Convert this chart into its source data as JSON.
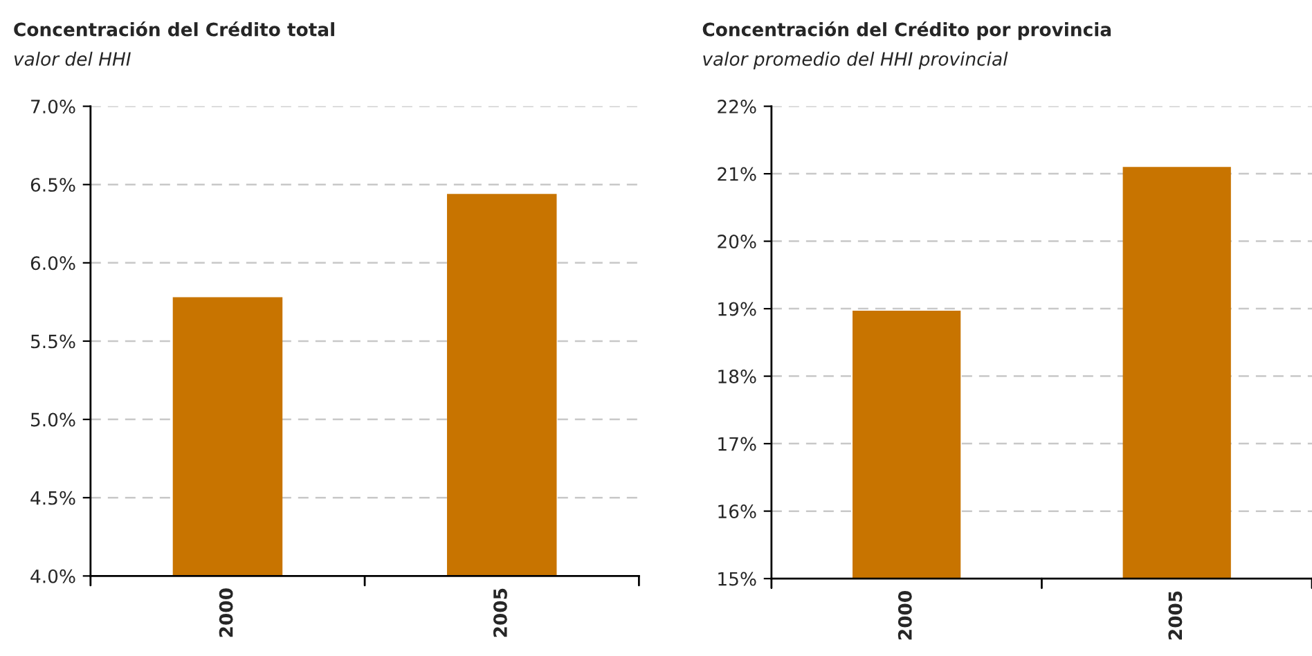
{
  "chart_data": [
    {
      "type": "bar",
      "title": "Concentración del Crédito total",
      "subtitle": "valor del HHI",
      "categories": [
        "2000",
        "2005"
      ],
      "series": [
        {
          "color": "#c87400",
          "values": [
            5.78,
            6.44
          ]
        }
      ],
      "ylim": [
        4.0,
        7.0
      ],
      "yticks": [
        {
          "value": 4.0,
          "label": "4.0%"
        },
        {
          "value": 4.5,
          "label": "4.5%"
        },
        {
          "value": 5.0,
          "label": "5.0%"
        },
        {
          "value": 5.5,
          "label": "5.5%"
        },
        {
          "value": 6.0,
          "label": "6.0%"
        },
        {
          "value": 6.5,
          "label": "6.5%"
        },
        {
          "value": 7.0,
          "label": "7.0%"
        }
      ],
      "grid": "y"
    },
    {
      "type": "bar",
      "title": "Concentración del Crédito por provincia",
      "subtitle": "valor promedio del HHI provincial",
      "categories": [
        "2000",
        "2005"
      ],
      "series": [
        {
          "color": "#c87400",
          "values": [
            18.97,
            21.1
          ]
        }
      ],
      "ylim": [
        15,
        22
      ],
      "yticks": [
        {
          "value": 15,
          "label": "15%"
        },
        {
          "value": 16,
          "label": "16%"
        },
        {
          "value": 17,
          "label": "17%"
        },
        {
          "value": 18,
          "label": "18%"
        },
        {
          "value": 19,
          "label": "19%"
        },
        {
          "value": 20,
          "label": "20%"
        },
        {
          "value": 21,
          "label": "21%"
        },
        {
          "value": 22,
          "label": "22%"
        }
      ],
      "grid": "y"
    }
  ]
}
